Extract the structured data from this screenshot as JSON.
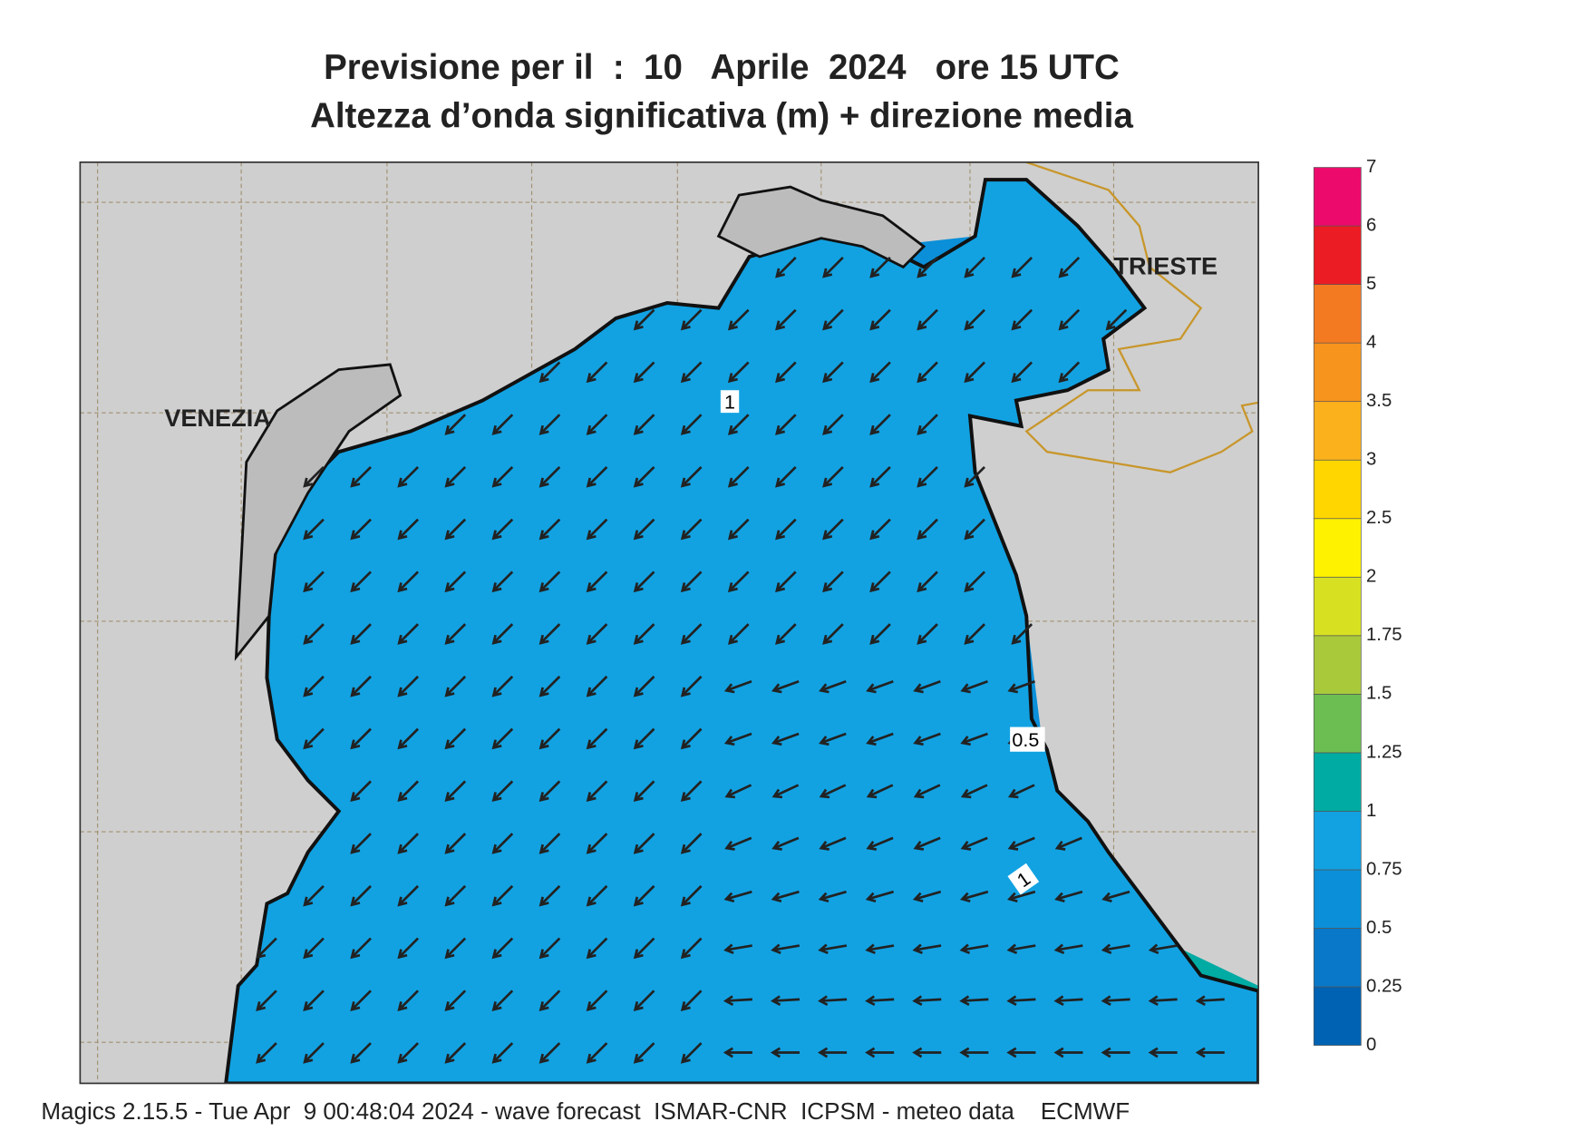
{
  "header": {
    "title_line1": "Previsione per il  :  10   Aprile  2024   ore 15 UTC",
    "title_line2": "Altezza d’onda significativa (m) + direzione media"
  },
  "map": {
    "places": [
      "VENEZIA",
      "TRIESTE"
    ],
    "contour_labels": [
      "1",
      "0.5",
      "1"
    ]
  },
  "colorbar": {
    "levels": [
      0,
      0.25,
      0.5,
      0.75,
      1,
      1.25,
      1.5,
      1.75,
      2,
      2.5,
      3,
      3.5,
      4,
      5,
      6,
      7
    ],
    "colors": [
      "#0062b2",
      "#0a78c8",
      "#0b8fd8",
      "#12a2e2",
      "#00aba3",
      "#6cbd52",
      "#a9c93b",
      "#d7e122",
      "#fff200",
      "#ffd600",
      "#fbb11c",
      "#f7941d",
      "#f47a22",
      "#ec1c24",
      "#ec0b6d"
    ]
  },
  "footer": "Magics 2.15.5 - Tue Apr  9 00:48:04 2024 - wave forecast  ISMAR-CNR  ICPSM - meteo data    ECMWF"
}
